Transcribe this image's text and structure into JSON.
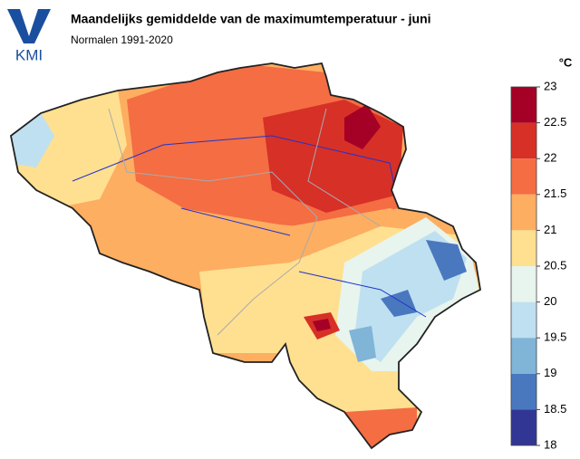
{
  "header": {
    "logo": "KMI",
    "title": "Maandelijks gemiddelde van de maximumtemperatuur - juni",
    "subtitle": "Normalen 1991-2020"
  },
  "legend": {
    "unit": "°C",
    "ticks": [
      23,
      22.5,
      22,
      21.5,
      21,
      20.5,
      20,
      19.5,
      19,
      18.5,
      18
    ],
    "colors": [
      "#a50026",
      "#d73027",
      "#f46d43",
      "#fdae61",
      "#fee090",
      "#e8f4ee",
      "#bfe0f0",
      "#80b5d8",
      "#4a78bf",
      "#313695"
    ]
  }
}
